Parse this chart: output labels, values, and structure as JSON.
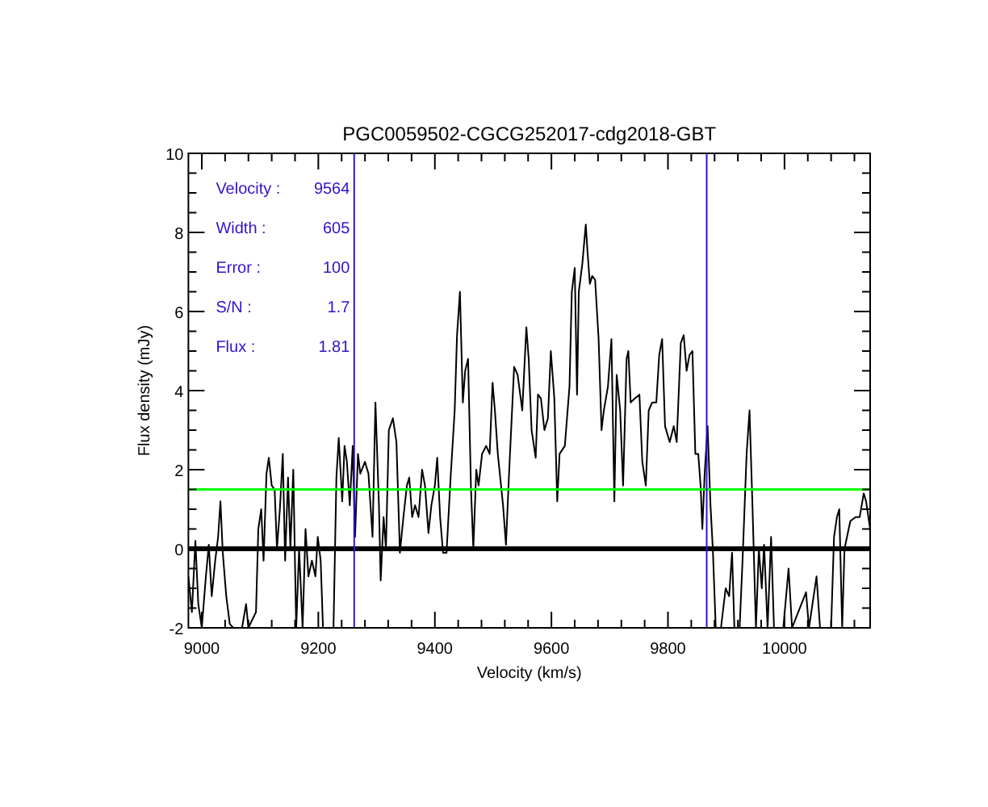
{
  "chart_data": {
    "type": "line",
    "title": "PGC0059502-CGCG252017-cdg2018-GBT",
    "xlabel": "Velocity (km/s)",
    "ylabel": "Flux density (mJy)",
    "x": [
      8977,
      8983,
      8989,
      8994,
      9000,
      9007,
      9012,
      9017,
      9023,
      9028,
      9032,
      9036,
      9042,
      9048,
      9054,
      9069,
      9076,
      9080,
      9093,
      9097,
      9102,
      9106,
      9111,
      9115,
      9120,
      9125,
      9129,
      9134,
      9139,
      9143,
      9148,
      9152,
      9157,
      9162,
      9167,
      9173,
      9178,
      9183,
      9189,
      9195,
      9199,
      9204,
      9208,
      9226,
      9231,
      9235,
      9241,
      9245,
      9249,
      9254,
      9259,
      9263,
      9268,
      9272,
      9280,
      9286,
      9293,
      9298,
      9304,
      9307,
      9312,
      9316,
      9321,
      9328,
      9334,
      9340,
      9346,
      9352,
      9356,
      9361,
      9366,
      9372,
      9378,
      9383,
      9389,
      9394,
      9400,
      9404,
      9409,
      9414,
      9420,
      9427,
      9434,
      9438,
      9443,
      9448,
      9452,
      9457,
      9462,
      9466,
      9471,
      9475,
      9481,
      9488,
      9494,
      9499,
      9503,
      9508,
      9517,
      9522,
      9527,
      9536,
      9542,
      9550,
      9557,
      9561,
      9566,
      9573,
      9577,
      9582,
      9588,
      9594,
      9599,
      9605,
      9610,
      9614,
      9623,
      9631,
      9635,
      9640,
      9644,
      9647,
      9653,
      9659,
      9662,
      9666,
      9670,
      9675,
      9681,
      9686,
      9690,
      9697,
      9703,
      9708,
      9712,
      9718,
      9723,
      9729,
      9732,
      9736,
      9743,
      9751,
      9756,
      9762,
      9767,
      9773,
      9780,
      9785,
      9790,
      9795,
      9803,
      9810,
      9815,
      9822,
      9827,
      9832,
      9837,
      9842,
      9847,
      9852,
      9856,
      9859,
      9863,
      9868,
      9873,
      9877,
      9882,
      9891,
      9899,
      9905,
      9910,
      9914,
      9923,
      9928,
      9935,
      9940,
      9945,
      9951,
      9956,
      9961,
      9965,
      9971,
      9977,
      9982,
      9998,
      10007,
      10013,
      10037,
      10042,
      10048,
      10055,
      10061,
      10080,
      10085,
      10090,
      10094,
      10099,
      10103,
      10113,
      10122,
      10129,
      10136,
      10140,
      10147
    ],
    "series": [
      {
        "color": "#000000",
        "values": [
          -0.7,
          -1.6,
          0.2,
          -1.4,
          -2,
          -0.7,
          0.1,
          -1.2,
          -0.3,
          0.3,
          1.2,
          -0.1,
          -1.2,
          -1.9,
          -2,
          -2,
          -1.4,
          -2,
          -1.6,
          0.5,
          1.0,
          -0.3,
          1.9,
          2.3,
          1.6,
          1.5,
          0.0,
          1.0,
          2.4,
          -0.3,
          1.8,
          0.0,
          2.0,
          -2,
          0.0,
          -2,
          0.5,
          -0.7,
          -0.3,
          -0.7,
          0.3,
          -0.3,
          -2,
          -2,
          1.8,
          2.8,
          1.2,
          2.6,
          2.2,
          1.1,
          2.6,
          0.3,
          2.4,
          1.9,
          2.2,
          1.9,
          0.3,
          3.7,
          1.1,
          -0.8,
          0.8,
          0.0,
          3.0,
          3.3,
          2.7,
          -0.1,
          0.8,
          1.6,
          1.8,
          0.8,
          1.1,
          0.8,
          2.0,
          1.6,
          0.4,
          1.1,
          1.6,
          2.3,
          0.8,
          -0.1,
          -0.1,
          1.8,
          3.5,
          5.4,
          6.5,
          3.7,
          4.5,
          4.8,
          1.5,
          0.0,
          2.0,
          1.6,
          2.4,
          2.6,
          2.4,
          4.2,
          3.5,
          2.4,
          1.1,
          0.1,
          1.8,
          4.6,
          4.4,
          3.5,
          5.6,
          4.8,
          3.0,
          2.3,
          3.9,
          3.8,
          3.0,
          3.3,
          5.0,
          3.8,
          1.2,
          2.4,
          2.6,
          4.1,
          6.5,
          7.1,
          3.9,
          6.5,
          7.2,
          8.2,
          7.5,
          6.7,
          6.9,
          6.8,
          5.3,
          3.0,
          3.5,
          4.1,
          5.3,
          1.2,
          4.4,
          3.5,
          1.6,
          4.8,
          5.0,
          3.7,
          3.8,
          3.9,
          2.2,
          1.6,
          3.5,
          3.7,
          3.7,
          4.9,
          5.3,
          3.1,
          2.7,
          3.1,
          2.7,
          5.2,
          5.4,
          4.5,
          4.9,
          5.0,
          2.4,
          2.4,
          1.6,
          0.5,
          1.9,
          3.1,
          1.1,
          0.0,
          -2,
          -2,
          -1.0,
          -1.2,
          -0.1,
          -2,
          -2,
          -0.3,
          2.4,
          3.5,
          1.1,
          -2,
          0.0,
          -1.0,
          0.1,
          -2,
          0.3,
          -2,
          -2,
          -0.5,
          -2,
          -1.1,
          -2,
          -1.4,
          -0.7,
          -2,
          -2,
          0.3,
          0.8,
          1.0,
          -2,
          0.0,
          0.7,
          0.8,
          0.8,
          1.4,
          1.2,
          0.5
        ]
      }
    ],
    "xlim": [
      8977,
      10147
    ],
    "xticks": [
      9000,
      {
        "value": 9040,
        "label": null
      },
      {
        "value": 9080,
        "label": null
      },
      {
        "value": 9120,
        "label": null
      },
      {
        "value": 9160,
        "label": null
      },
      9200,
      {
        "value": 9240,
        "label": null
      },
      {
        "value": 9280,
        "label": null
      },
      {
        "value": 9320,
        "label": null
      },
      {
        "value": 9360,
        "label": null
      },
      9400,
      {
        "value": 9440,
        "label": null
      },
      {
        "value": 9480,
        "label": null
      },
      {
        "value": 9520,
        "label": null
      },
      {
        "value": 9560,
        "label": null
      },
      9600,
      {
        "value": 9640,
        "label": null
      },
      {
        "value": 9680,
        "label": null
      },
      {
        "value": 9720,
        "label": null
      },
      {
        "value": 9760,
        "label": null
      },
      9800,
      {
        "value": 9840,
        "label": null
      },
      {
        "value": 9880,
        "label": null
      },
      {
        "value": 9920,
        "label": null
      },
      {
        "value": 9960,
        "label": null
      },
      10000,
      {
        "value": 10040,
        "label": null
      },
      {
        "value": 10080,
        "label": null
      },
      {
        "value": 10120,
        "label": null
      }
    ],
    "ylim": [
      -2,
      10
    ],
    "yticks": [
      -2,
      {
        "value": -1.5,
        "label": null
      },
      {
        "value": -1,
        "label": null
      },
      {
        "value": -0.5,
        "label": null
      },
      0,
      {
        "value": 0.5,
        "label": null
      },
      {
        "value": 1,
        "label": null
      },
      {
        "value": 1.5,
        "label": null
      },
      2,
      {
        "value": 2.5,
        "label": null
      },
      {
        "value": 3,
        "label": null
      },
      {
        "value": 3.5,
        "label": null
      },
      4,
      {
        "value": 4.5,
        "label": null
      },
      {
        "value": 5,
        "label": null
      },
      {
        "value": 5.5,
        "label": null
      },
      6,
      {
        "value": 6.5,
        "label": null
      },
      {
        "value": 7,
        "label": null
      },
      {
        "value": 7.5,
        "label": null
      },
      8,
      {
        "value": 8.5,
        "label": null
      },
      {
        "value": 9,
        "label": null
      },
      {
        "value": 9.5,
        "label": null
      },
      10
    ],
    "ref_lines": [
      {
        "axis": "y",
        "value": 0,
        "color": "#000000"
      },
      {
        "axis": "y",
        "value": 1.5,
        "color": "#00ff00"
      },
      {
        "axis": "x",
        "value": 9261.5,
        "color": "#3311cc"
      },
      {
        "axis": "x",
        "value": 9866.5,
        "color": "#3311cc"
      }
    ],
    "annotations": [
      "Velocity :",
      "9564",
      "Width :",
      "605",
      "Error :",
      "100",
      "S/N :",
      "1.7",
      "Flux :",
      "1.81"
    ],
    "grid": false,
    "marker": "none",
    "line_style": "solid"
  }
}
